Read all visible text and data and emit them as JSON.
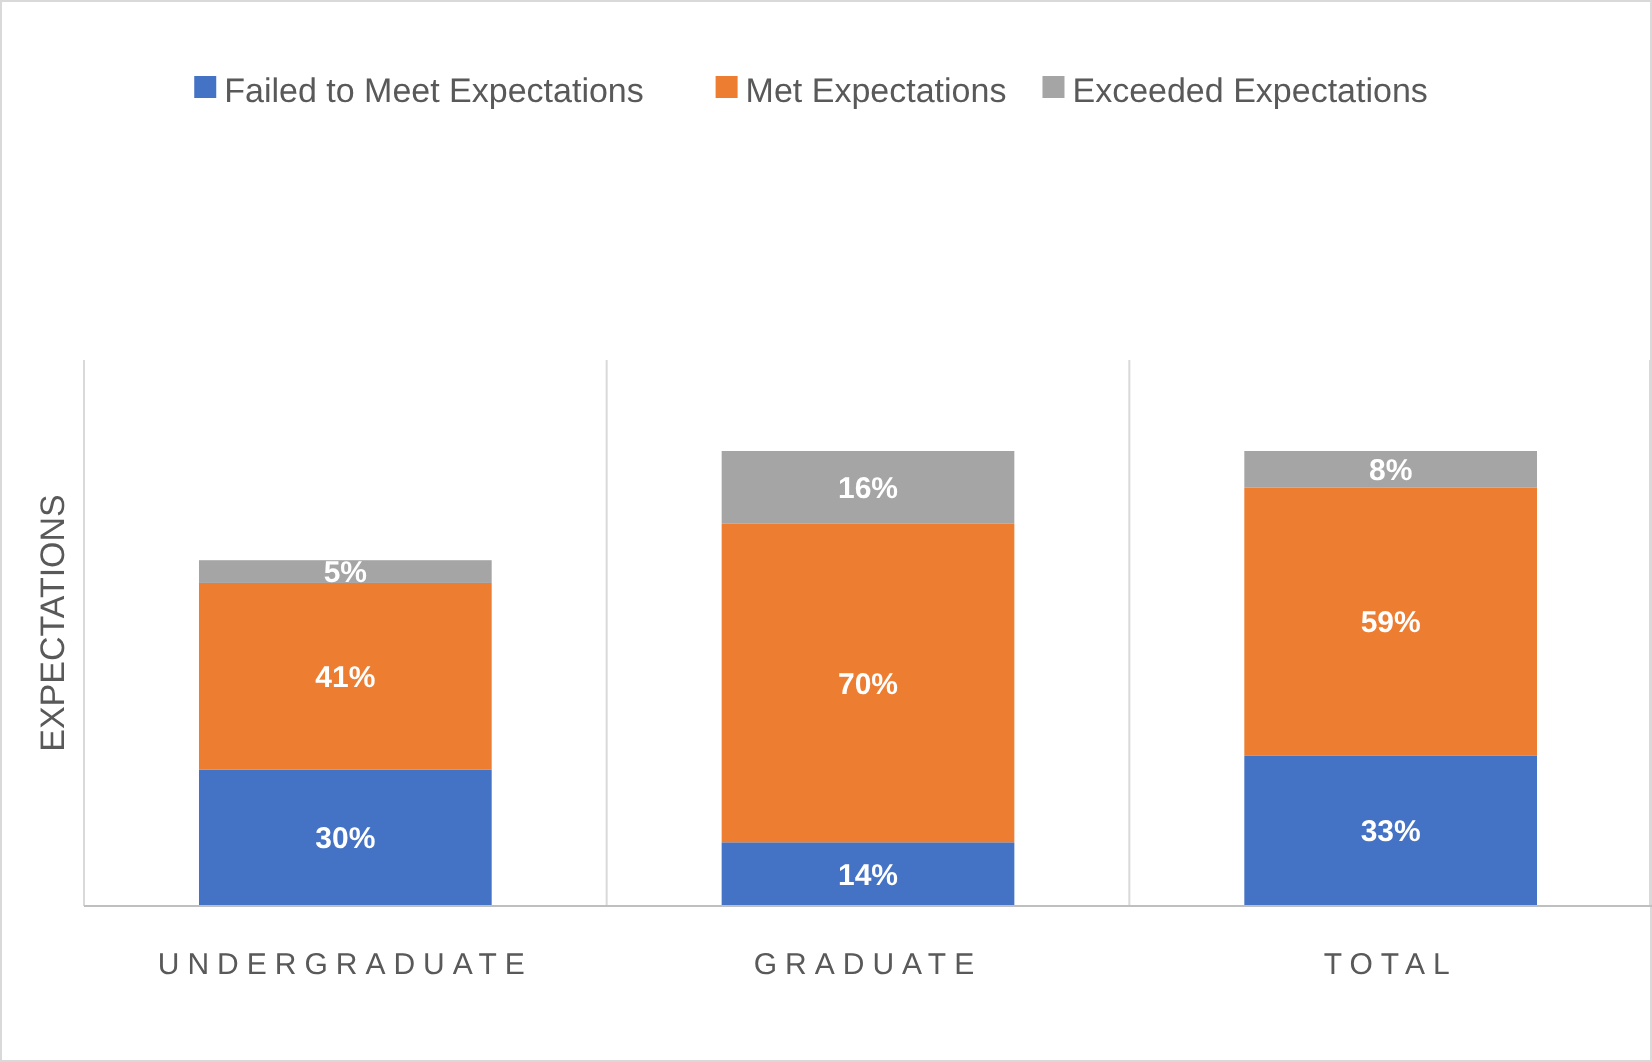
{
  "chart_data": {
    "type": "bar",
    "stacked": true,
    "ylabel": "EXPECTATIONS",
    "categories": [
      "UNDERGRADUATE",
      "GRADUATE",
      "TOTAL"
    ],
    "ylim": [
      0,
      120
    ],
    "grid": "x",
    "legend": "top",
    "tick_labels": "x",
    "series": [
      {
        "name": "Failed to Meet Expectations",
        "color": "#4472c4",
        "values": [
          30,
          14,
          33
        ],
        "value_labels": [
          "30%",
          "14%",
          "33%"
        ]
      },
      {
        "name": "Met Expectations",
        "color": "#ed7d31",
        "values": [
          41,
          70,
          59
        ],
        "value_labels": [
          "41%",
          "70%",
          "59%"
        ]
      },
      {
        "name": "Exceeded Expectations",
        "color": "#a5a5a5",
        "values": [
          5,
          16,
          8
        ],
        "value_labels": [
          "5%",
          "16%",
          "8%"
        ]
      }
    ]
  }
}
